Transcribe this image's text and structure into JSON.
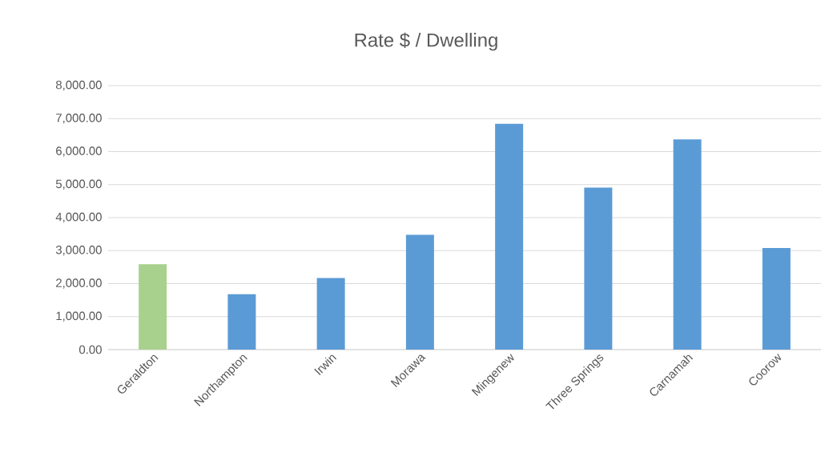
{
  "chart_data": {
    "type": "bar",
    "title": "Rate $ / Dwelling",
    "categories": [
      "Geraldton",
      "Northampton",
      "Irwin",
      "Morawa",
      "Mingenew",
      "Three Springs",
      "Carnamah",
      "Coorow"
    ],
    "values": [
      2590,
      1680,
      2170,
      3480,
      6840,
      4910,
      6370,
      3080
    ],
    "colors": [
      "#a9d18e",
      "#5b9bd5",
      "#5b9bd5",
      "#5b9bd5",
      "#5b9bd5",
      "#5b9bd5",
      "#5b9bd5",
      "#5b9bd5"
    ],
    "ylim": [
      0,
      8000
    ],
    "yticks": [
      {
        "value": 0,
        "label": "0.00"
      },
      {
        "value": 1000,
        "label": "1,000.00"
      },
      {
        "value": 2000,
        "label": "2,000.00"
      },
      {
        "value": 3000,
        "label": "3,000.00"
      },
      {
        "value": 4000,
        "label": "4,000.00"
      },
      {
        "value": 5000,
        "label": "5,000.00"
      },
      {
        "value": 6000,
        "label": "6,000.00"
      },
      {
        "value": 7000,
        "label": "7,000.00"
      },
      {
        "value": 8000,
        "label": "8,000.00"
      }
    ],
    "grid": "y"
  }
}
